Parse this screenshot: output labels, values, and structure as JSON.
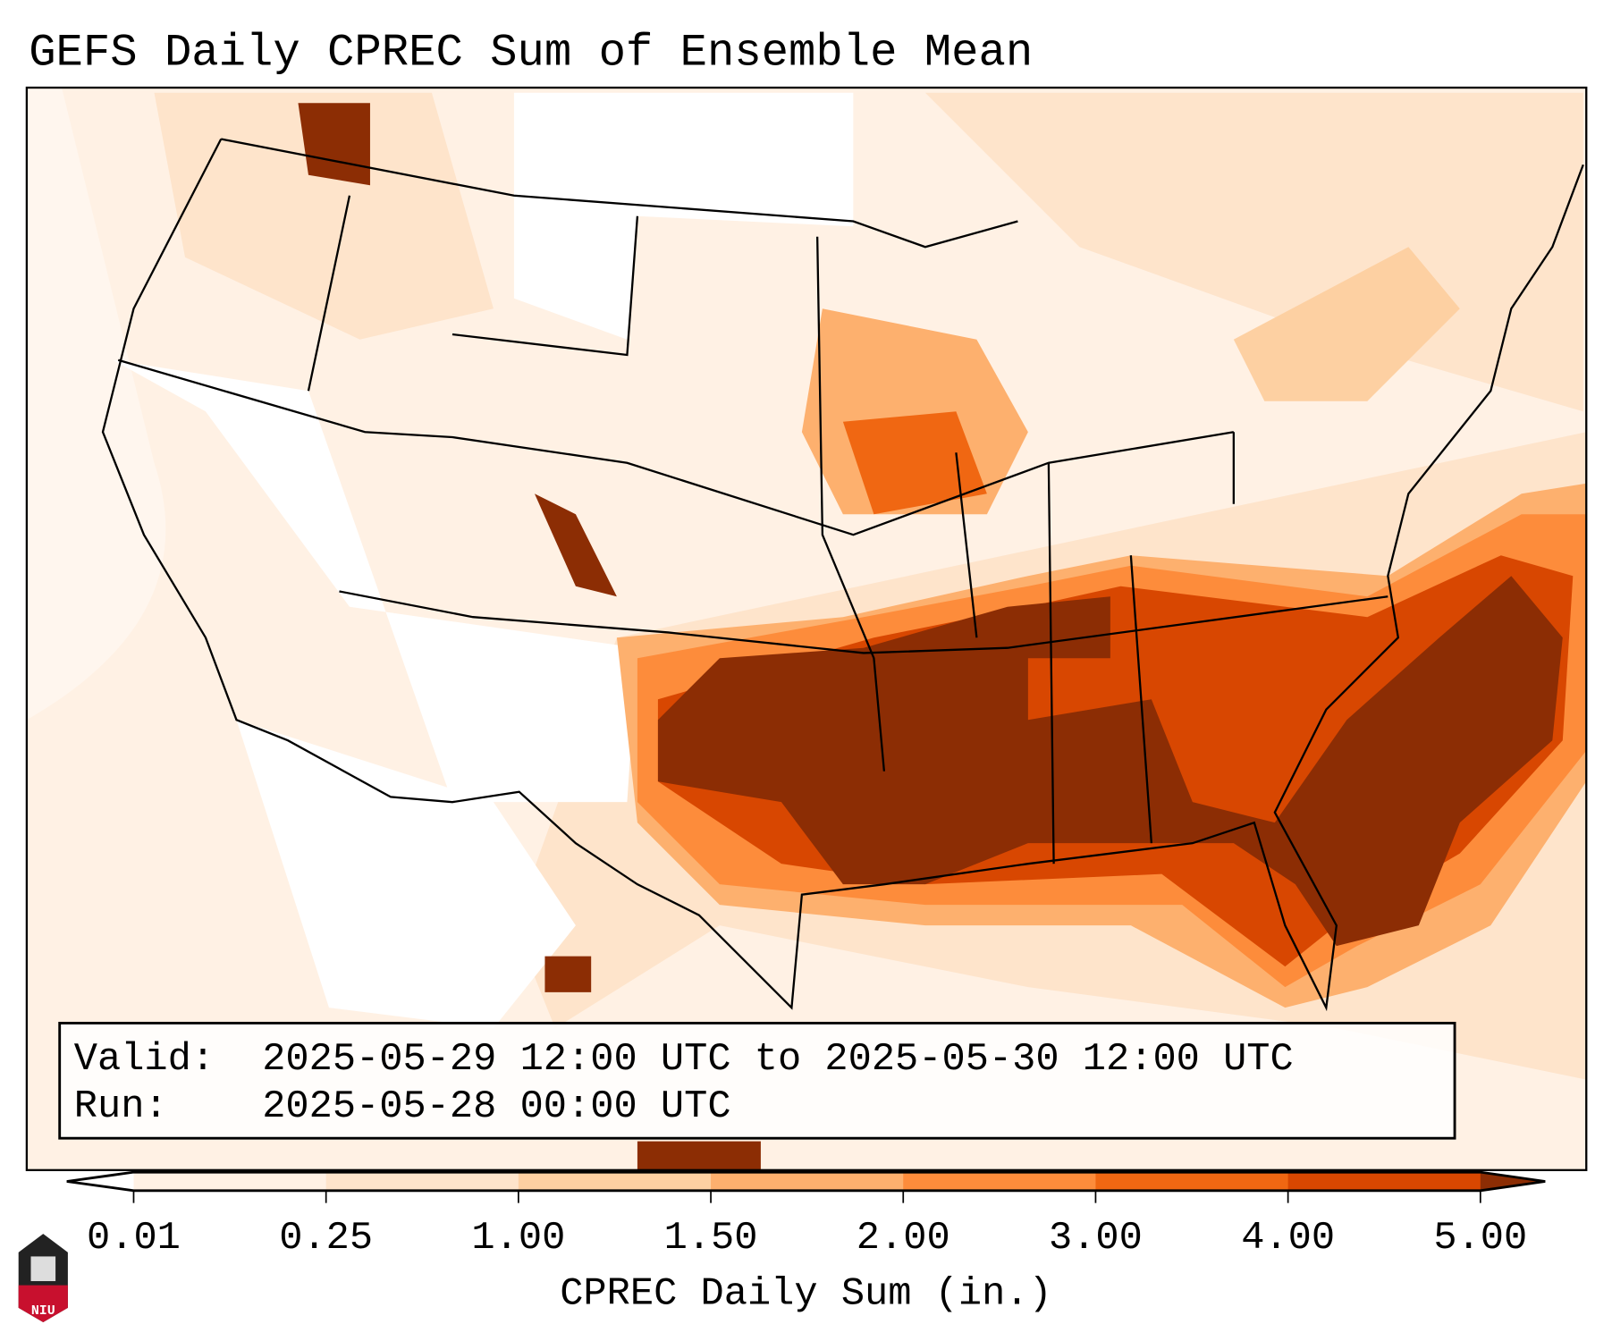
{
  "chart_data": {
    "type": "heatmap",
    "title": "GEFS Daily CPREC Sum of Ensemble Mean",
    "valid_label": "Valid:",
    "valid_text": "2025-05-29 12:00 UTC to 2025-05-30 12:00 UTC",
    "run_label": "Run:",
    "run_text": "2025-05-28 00:00 UTC",
    "colorbar": {
      "label": "CPREC Daily Sum (in.)",
      "ticks": [
        "0.01",
        "0.25",
        "1.00",
        "1.50",
        "2.00",
        "3.00",
        "4.00",
        "5.00"
      ],
      "levels": [
        0.01,
        0.25,
        1.0,
        1.5,
        2.0,
        3.0,
        4.0,
        5.0
      ],
      "colors": [
        "#fff1e4",
        "#fee4cb",
        "#fdd0a2",
        "#fdb06e",
        "#fd8c3b",
        "#f06712",
        "#d84701",
        "#8c2d04"
      ],
      "under_color": "#ffffff",
      "over_color": "#8c2d04",
      "extend": "both"
    },
    "logo_text": "NIU"
  }
}
